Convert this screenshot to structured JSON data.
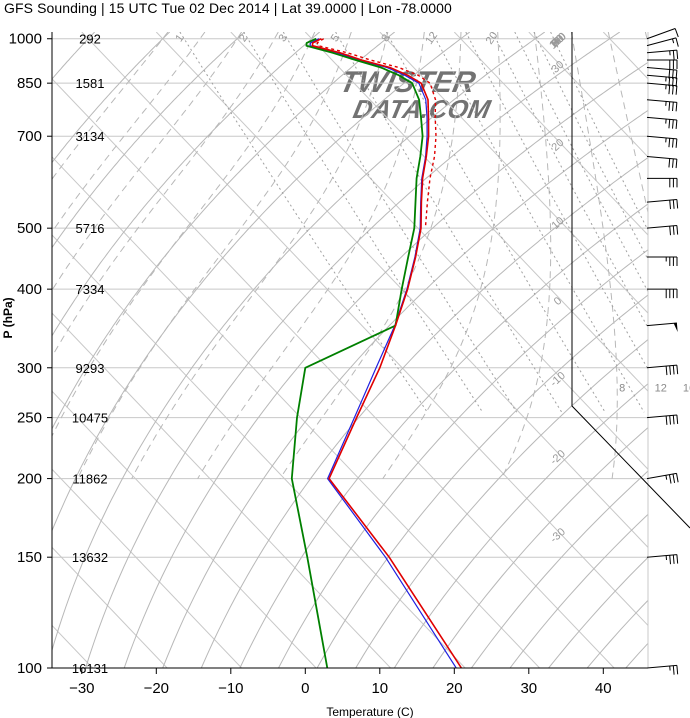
{
  "title": "GFS Sounding | 15 UTC Tue 02 Dec 2014 | Lat 39.0000 | Lon -78.0000",
  "watermark": {
    "line1": "TWISTER",
    "line2": "DATA.COM",
    "color": "#e8b0b0"
  },
  "colors": {
    "temperature": "#e00000",
    "virtual_temperature": "#2020e0",
    "dewpoint": "#008000",
    "parcel": "#e00000",
    "grid": "#c8c8c8",
    "wind_barb": "#000000"
  },
  "chart_data": {
    "type": "skew-t",
    "xlabel": "Temperature (C)",
    "ylabel": "P (hPa)",
    "xlim": [
      -34,
      46
    ],
    "ylim": [
      1025,
      100
    ],
    "x_ticks": [
      -30,
      -20,
      -10,
      0,
      10,
      20,
      30,
      40
    ],
    "pressure_ticks": [
      {
        "p": 100,
        "label": "100"
      },
      {
        "p": 150,
        "label": "150"
      },
      {
        "p": 200,
        "label": "200"
      },
      {
        "p": 250,
        "label": "250"
      },
      {
        "p": 300,
        "label": "300"
      },
      {
        "p": 400,
        "label": "400"
      },
      {
        "p": 500,
        "label": "500"
      },
      {
        "p": 700,
        "label": "700"
      },
      {
        "p": 850,
        "label": "850"
      },
      {
        "p": 1000,
        "label": "1000"
      }
    ],
    "heights_m": [
      {
        "p": 100,
        "label": "16131"
      },
      {
        "p": 150,
        "label": "13632"
      },
      {
        "p": 200,
        "label": "11862"
      },
      {
        "p": 250,
        "label": "10475"
      },
      {
        "p": 300,
        "label": "9293"
      },
      {
        "p": 400,
        "label": "7334"
      },
      {
        "p": 500,
        "label": "5716"
      },
      {
        "p": 700,
        "label": "3134"
      },
      {
        "p": 850,
        "label": "1581"
      },
      {
        "p": 1000,
        "label": "292"
      }
    ],
    "isotherm_labels": [
      "110",
      "100",
      "90",
      "80",
      "70",
      "60",
      "50",
      "40",
      "30",
      "20",
      "10",
      "0",
      "-10",
      "-20",
      "-30"
    ],
    "mixing_ratio_labels": [
      "8",
      "12",
      "16",
      "20",
      "24",
      "28",
      "32"
    ],
    "mixing_ratio_bottom_labels": [
      "1",
      "2",
      "3",
      "5",
      "8",
      "12",
      "20"
    ],
    "series": [
      {
        "name": "temperature",
        "points": [
          {
            "p": 1000,
            "t": 1.3
          },
          {
            "p": 985,
            "t": -0.4
          },
          {
            "p": 975,
            "t": -0.8
          },
          {
            "p": 950,
            "t": 2.0
          },
          {
            "p": 925,
            "t": 4.0
          },
          {
            "p": 900,
            "t": 6.8
          },
          {
            "p": 875,
            "t": 8.2
          },
          {
            "p": 850,
            "t": 9.0
          },
          {
            "p": 800,
            "t": 7.8
          },
          {
            "p": 750,
            "t": 5.6
          },
          {
            "p": 700,
            "t": 3.2
          },
          {
            "p": 650,
            "t": 0.3
          },
          {
            "p": 600,
            "t": -3.0
          },
          {
            "p": 550,
            "t": -6.2
          },
          {
            "p": 500,
            "t": -9.6
          },
          {
            "p": 450,
            "t": -14.0
          },
          {
            "p": 400,
            "t": -19.2
          },
          {
            "p": 350,
            "t": -25.5
          },
          {
            "p": 300,
            "t": -33.0
          },
          {
            "p": 250,
            "t": -42.5
          },
          {
            "p": 200,
            "t": -54.0
          },
          {
            "p": 150,
            "t": -56.0
          },
          {
            "p": 100,
            "t": -60.5
          }
        ]
      },
      {
        "name": "virtual temperature",
        "points": [
          {
            "p": 1000,
            "t": 1.0
          },
          {
            "p": 985,
            "t": -0.7
          },
          {
            "p": 975,
            "t": -1.1
          },
          {
            "p": 950,
            "t": 1.6
          },
          {
            "p": 925,
            "t": 3.6
          },
          {
            "p": 900,
            "t": 6.4
          },
          {
            "p": 875,
            "t": 7.8
          },
          {
            "p": 850,
            "t": 8.7
          },
          {
            "p": 800,
            "t": 7.5
          },
          {
            "p": 750,
            "t": 5.4
          },
          {
            "p": 700,
            "t": 3.0
          },
          {
            "p": 650,
            "t": 0.2
          },
          {
            "p": 600,
            "t": -3.1
          },
          {
            "p": 550,
            "t": -6.3
          },
          {
            "p": 500,
            "t": -9.7
          },
          {
            "p": 450,
            "t": -14.1
          },
          {
            "p": 400,
            "t": -19.3
          },
          {
            "p": 350,
            "t": -25.6
          },
          {
            "p": 300,
            "t": -33.5
          },
          {
            "p": 250,
            "t": -42.8
          },
          {
            "p": 200,
            "t": -54.2
          },
          {
            "p": 150,
            "t": -56.5
          },
          {
            "p": 100,
            "t": -61.2
          }
        ]
      },
      {
        "name": "dewpoint",
        "points": [
          {
            "p": 1000,
            "t": 0.6
          },
          {
            "p": 985,
            "t": -1.2
          },
          {
            "p": 975,
            "t": -1.6
          },
          {
            "p": 950,
            "t": 1.0
          },
          {
            "p": 925,
            "t": 3.2
          },
          {
            "p": 900,
            "t": 5.6
          },
          {
            "p": 875,
            "t": 7.0
          },
          {
            "p": 850,
            "t": 7.8
          },
          {
            "p": 800,
            "t": 6.6
          },
          {
            "p": 750,
            "t": 4.6
          },
          {
            "p": 700,
            "t": 2.4
          },
          {
            "p": 650,
            "t": -0.5
          },
          {
            "p": 600,
            "t": -3.8
          },
          {
            "p": 550,
            "t": -7.0
          },
          {
            "p": 500,
            "t": -10.5
          },
          {
            "p": 450,
            "t": -15.0
          },
          {
            "p": 400,
            "t": -20.0
          },
          {
            "p": 350,
            "t": -25.5
          },
          {
            "p": 300,
            "t": -43.0
          },
          {
            "p": 250,
            "t": -50.5
          },
          {
            "p": 200,
            "t": -59.0
          },
          {
            "p": 150,
            "t": -67.0
          },
          {
            "p": 100,
            "t": -78.5
          }
        ]
      },
      {
        "name": "parcel",
        "dashed": true,
        "points": [
          {
            "p": 1000,
            "t": 1.6
          },
          {
            "p": 985,
            "t": 0.2
          },
          {
            "p": 975,
            "t": 0.0
          },
          {
            "p": 950,
            "t": 3.0
          },
          {
            "p": 925,
            "t": 5.2
          },
          {
            "p": 900,
            "t": 8.0
          },
          {
            "p": 875,
            "t": 9.6
          },
          {
            "p": 850,
            "t": 10.2
          },
          {
            "p": 800,
            "t": 8.8
          },
          {
            "p": 750,
            "t": 6.5
          },
          {
            "p": 700,
            "t": 4.2
          },
          {
            "p": 650,
            "t": 1.4
          },
          {
            "p": 600,
            "t": -2.0
          },
          {
            "p": 550,
            "t": -5.4
          },
          {
            "p": 500,
            "t": -9.0
          }
        ]
      }
    ],
    "wind_barbs_kt": [
      {
        "p": 1000,
        "dir": 250,
        "spd": 10
      },
      {
        "p": 975,
        "dir": 255,
        "spd": 15
      },
      {
        "p": 950,
        "dir": 265,
        "spd": 25
      },
      {
        "p": 925,
        "dir": 270,
        "spd": 30
      },
      {
        "p": 900,
        "dir": 275,
        "spd": 30
      },
      {
        "p": 875,
        "dir": 275,
        "spd": 35
      },
      {
        "p": 850,
        "dir": 275,
        "spd": 35
      },
      {
        "p": 800,
        "dir": 275,
        "spd": 35
      },
      {
        "p": 750,
        "dir": 275,
        "spd": 35
      },
      {
        "p": 700,
        "dir": 275,
        "spd": 35
      },
      {
        "p": 650,
        "dir": 275,
        "spd": 30
      },
      {
        "p": 600,
        "dir": 270,
        "spd": 30
      },
      {
        "p": 550,
        "dir": 265,
        "spd": 30
      },
      {
        "p": 500,
        "dir": 265,
        "spd": 30
      },
      {
        "p": 450,
        "dir": 270,
        "spd": 35
      },
      {
        "p": 400,
        "dir": 270,
        "spd": 40
      },
      {
        "p": 350,
        "dir": 265,
        "spd": 50
      },
      {
        "p": 300,
        "dir": 265,
        "spd": 40
      },
      {
        "p": 250,
        "dir": 265,
        "spd": 40
      },
      {
        "p": 200,
        "dir": 260,
        "spd": 35
      },
      {
        "p": 150,
        "dir": 265,
        "spd": 35
      },
      {
        "p": 100,
        "dir": 265,
        "spd": 25
      }
    ]
  }
}
